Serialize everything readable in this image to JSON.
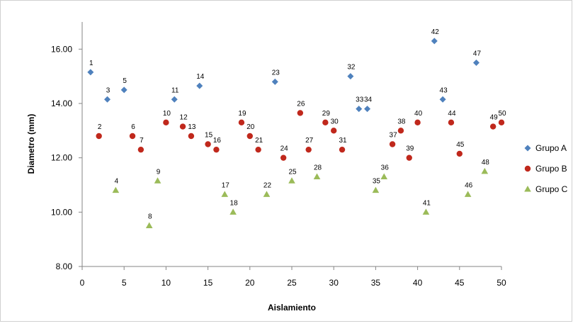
{
  "chart_data": {
    "type": "scatter",
    "xlabel": "Aislamiento",
    "ylabel": "Diametro (mm)",
    "xlim": [
      0,
      50
    ],
    "ylim": [
      8,
      17
    ],
    "x_ticks": [
      "0",
      "5",
      "10",
      "15",
      "20",
      "25",
      "30",
      "35",
      "40",
      "45",
      "50"
    ],
    "y_ticks": [
      "8.00",
      "10.00",
      "12.00",
      "14.00",
      "16.00"
    ],
    "grid": false,
    "legend_position": "right",
    "series": [
      {
        "name": "Grupo A",
        "marker": "diamond",
        "color": "#4f81bd",
        "points": [
          {
            "label": "1",
            "x": 1,
            "y": 15.15
          },
          {
            "label": "3",
            "x": 3,
            "y": 14.15
          },
          {
            "label": "5",
            "x": 5,
            "y": 14.5
          },
          {
            "label": "11",
            "x": 11,
            "y": 14.15
          },
          {
            "label": "14",
            "x": 14,
            "y": 14.65
          },
          {
            "label": "23",
            "x": 23,
            "y": 14.8
          },
          {
            "label": "32",
            "x": 32,
            "y": 15.0
          },
          {
            "label": "33",
            "x": 33,
            "y": 13.8
          },
          {
            "label": "34",
            "x": 34,
            "y": 13.8
          },
          {
            "label": "42",
            "x": 42,
            "y": 16.3
          },
          {
            "label": "43",
            "x": 43,
            "y": 14.15
          },
          {
            "label": "47",
            "x": 47,
            "y": 15.5
          }
        ]
      },
      {
        "name": "Grupo B",
        "marker": "circle",
        "color": "#c0281c",
        "points": [
          {
            "label": "2",
            "x": 2,
            "y": 12.8
          },
          {
            "label": "6",
            "x": 6,
            "y": 12.8
          },
          {
            "label": "7",
            "x": 7,
            "y": 12.3
          },
          {
            "label": "10",
            "x": 10,
            "y": 13.3
          },
          {
            "label": "12",
            "x": 12,
            "y": 13.15
          },
          {
            "label": "13",
            "x": 13,
            "y": 12.8
          },
          {
            "label": "15",
            "x": 15,
            "y": 12.5
          },
          {
            "label": "16",
            "x": 16,
            "y": 12.3
          },
          {
            "label": "19",
            "x": 19,
            "y": 13.3
          },
          {
            "label": "20",
            "x": 20,
            "y": 12.8
          },
          {
            "label": "21",
            "x": 21,
            "y": 12.3
          },
          {
            "label": "24",
            "x": 24,
            "y": 12.0
          },
          {
            "label": "26",
            "x": 26,
            "y": 13.65
          },
          {
            "label": "27",
            "x": 27,
            "y": 12.3
          },
          {
            "label": "29",
            "x": 29,
            "y": 13.3
          },
          {
            "label": "30",
            "x": 30,
            "y": 13.0
          },
          {
            "label": "31",
            "x": 31,
            "y": 12.3
          },
          {
            "label": "37",
            "x": 37,
            "y": 12.5
          },
          {
            "label": "38",
            "x": 38,
            "y": 13.0
          },
          {
            "label": "39",
            "x": 39,
            "y": 12.0
          },
          {
            "label": "40",
            "x": 40,
            "y": 13.3
          },
          {
            "label": "44",
            "x": 44,
            "y": 13.3
          },
          {
            "label": "45",
            "x": 45,
            "y": 12.15
          },
          {
            "label": "49",
            "x": 49,
            "y": 13.15
          },
          {
            "label": "50",
            "x": 50,
            "y": 13.3
          }
        ]
      },
      {
        "name": "Grupo C",
        "marker": "triangle",
        "color": "#9bbb59",
        "points": [
          {
            "label": "4",
            "x": 4,
            "y": 10.8
          },
          {
            "label": "8",
            "x": 8,
            "y": 9.5
          },
          {
            "label": "9",
            "x": 9,
            "y": 11.15
          },
          {
            "label": "17",
            "x": 17,
            "y": 10.65
          },
          {
            "label": "18",
            "x": 18,
            "y": 10.0
          },
          {
            "label": "22",
            "x": 22,
            "y": 10.65
          },
          {
            "label": "25",
            "x": 25,
            "y": 11.15
          },
          {
            "label": "28",
            "x": 28,
            "y": 11.3
          },
          {
            "label": "35",
            "x": 35,
            "y": 10.8
          },
          {
            "label": "36",
            "x": 36,
            "y": 11.3
          },
          {
            "label": "41",
            "x": 41,
            "y": 10.0
          },
          {
            "label": "46",
            "x": 46,
            "y": 10.65
          },
          {
            "label": "48",
            "x": 48,
            "y": 11.5
          }
        ]
      }
    ]
  }
}
